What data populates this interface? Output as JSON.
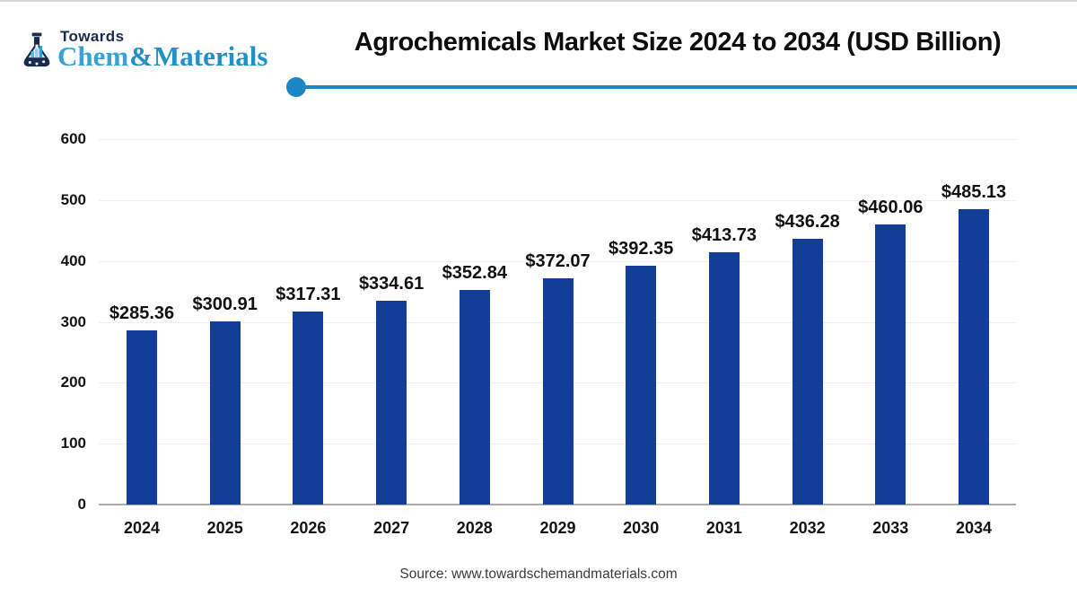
{
  "logo": {
    "top_text": "Towards",
    "brand_chem": "Chem",
    "brand_amp": "&",
    "brand_materials": "Materials",
    "navy": "#1B2B4D",
    "light_blue": "#56B7E6"
  },
  "header": {
    "title": "Agrochemicals Market Size 2024 to 2034 (USD Billion)",
    "divider_color": "#1C86C4"
  },
  "chart_data": {
    "type": "bar",
    "title": "Agrochemicals Market Size 2024 to 2034 (USD Billion)",
    "categories": [
      "2024",
      "2025",
      "2026",
      "2027",
      "2028",
      "2029",
      "2030",
      "2031",
      "2032",
      "2033",
      "2034"
    ],
    "values": [
      285.36,
      300.91,
      317.31,
      334.61,
      352.84,
      372.07,
      392.35,
      413.73,
      436.28,
      460.06,
      485.13
    ],
    "value_labels": [
      "$285.36",
      "$300.91",
      "$317.31",
      "$334.61",
      "$352.84",
      "$372.07",
      "$392.35",
      "$413.73",
      "$436.28",
      "$460.06",
      "$485.13"
    ],
    "unit": "USD Billion",
    "bar_color": "#123E97",
    "ylim": [
      0,
      600
    ],
    "yticks": [
      0,
      100,
      200,
      300,
      400,
      500,
      600
    ],
    "grid": true,
    "legend": false,
    "xlabel": "",
    "ylabel": ""
  },
  "footer": {
    "source": "Source: www.towardschemandmaterials.com"
  }
}
